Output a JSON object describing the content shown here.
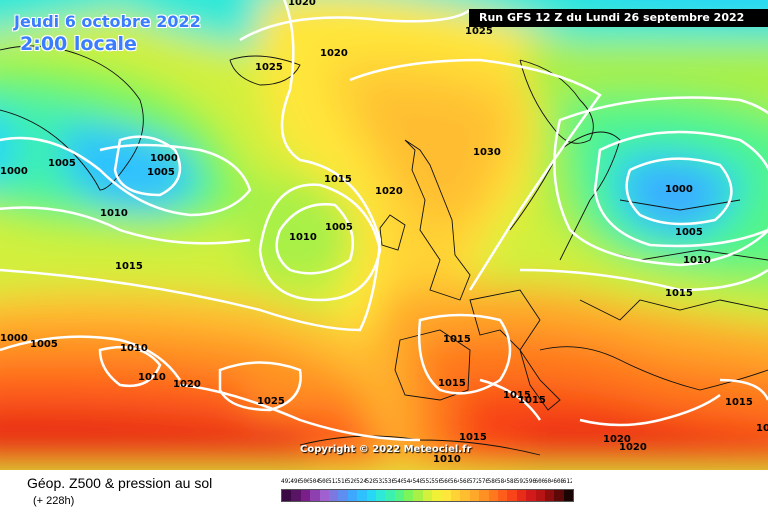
{
  "header": {
    "forecast_date": "Jeudi 6 octobre 2022",
    "local_time": "2:00 locale",
    "run_info": "Run GFS 12 Z du Lundi 26 septembre 2022"
  },
  "footer": {
    "title": "Géop. Z500 & pression au sol",
    "subtitle": "(+ 228h)",
    "copyright": "Copyright © 2022 Meteociel.fr"
  },
  "legend": {
    "labels": [
      "492",
      "496",
      "500",
      "504",
      "508",
      "512",
      "516",
      "520",
      "524",
      "528",
      "532",
      "536",
      "540",
      "544",
      "548",
      "552",
      "556",
      "560",
      "564",
      "568",
      "572",
      "576",
      "580",
      "584",
      "588",
      "592",
      "596",
      "600",
      "604",
      "608",
      "612"
    ],
    "colors": [
      "#3b0a45",
      "#5a1466",
      "#7a1f8a",
      "#8e3fb0",
      "#a060d0",
      "#7b78e0",
      "#5d8ef0",
      "#3ea8ff",
      "#2fc1ff",
      "#28d7f5",
      "#2ee8d8",
      "#3cf0b0",
      "#55f585",
      "#7cf55a",
      "#a8f046",
      "#d2f03c",
      "#f0f036",
      "#ffe63a",
      "#ffd236",
      "#ffbe30",
      "#ffa82a",
      "#ff9024",
      "#ff781e",
      "#ff5e1a",
      "#f84418",
      "#e82c18",
      "#d21a1a",
      "#b81414",
      "#8e0e0e",
      "#5e0808",
      "#1a0404"
    ]
  },
  "isobar_labels": [
    {
      "text": "1020"
    },
    {
      "text": "1020"
    },
    {
      "text": "1025"
    },
    {
      "text": "1025"
    },
    {
      "text": "1000"
    },
    {
      "text": "1005"
    },
    {
      "text": "1000"
    },
    {
      "text": "1005"
    },
    {
      "text": "1010"
    },
    {
      "text": "1015"
    },
    {
      "text": "1015"
    },
    {
      "text": "1005"
    },
    {
      "text": "1010"
    },
    {
      "text": "1020"
    },
    {
      "text": "1030"
    },
    {
      "text": "1000"
    },
    {
      "text": "1005"
    },
    {
      "text": "1010"
    },
    {
      "text": "1015"
    },
    {
      "text": "1000"
    },
    {
      "text": "1005"
    },
    {
      "text": "1010"
    },
    {
      "text": "1010"
    },
    {
      "text": "1020"
    },
    {
      "text": "1025"
    },
    {
      "text": "1015"
    },
    {
      "text": "1015"
    },
    {
      "text": "1015"
    },
    {
      "text": "1015"
    },
    {
      "text": "1015"
    },
    {
      "text": "1015"
    },
    {
      "text": "1010"
    },
    {
      "text": "1020"
    },
    {
      "text": "1020"
    },
    {
      "text": "1015"
    }
  ]
}
